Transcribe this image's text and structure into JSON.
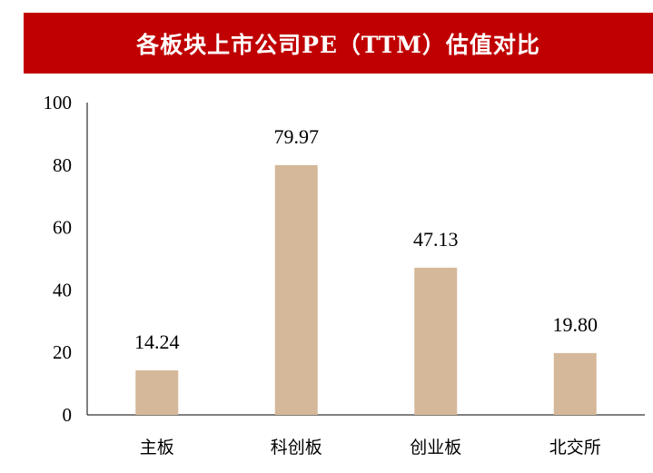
{
  "chart_data": {
    "type": "bar",
    "title": "各板块上市公司PE（TTM）估值对比",
    "categories": [
      "主板",
      "科创板",
      "创业板",
      "北交所"
    ],
    "values": [
      14.24,
      79.97,
      47.13,
      19.8
    ],
    "data_labels": [
      "14.24",
      "79.97",
      "47.13",
      "19.80"
    ],
    "y_ticks": [
      "0",
      "20",
      "40",
      "60",
      "80",
      "100"
    ],
    "ylim": [
      0,
      100
    ],
    "grid": false,
    "legend": "none",
    "bar_color": "#d5b899",
    "title_bg_color": "#c00000"
  }
}
